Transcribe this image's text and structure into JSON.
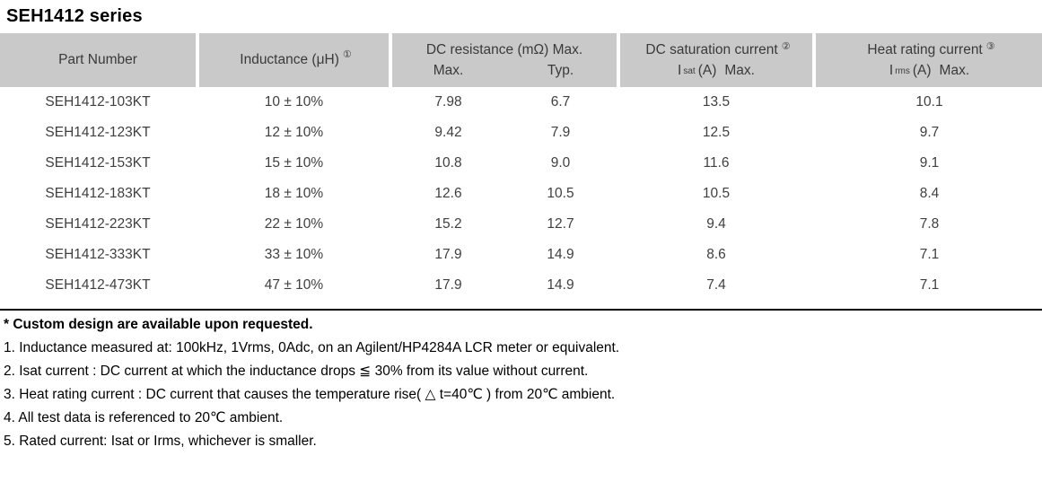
{
  "title": "SEH1412 series",
  "header": {
    "part_number": "Part Number",
    "inductance": {
      "label": "Inductance (μH)",
      "sup": "①"
    },
    "dc_resistance": {
      "label": "DC resistance (mΩ) Max.",
      "sub_max": "Max.",
      "sub_typ": "Typ."
    },
    "dc_saturation": {
      "label": "DC saturation current",
      "sup": "②",
      "i": "I",
      "sub": "sat",
      "unit": "(A)",
      "max": "Max."
    },
    "heat_rating": {
      "label": "Heat rating current",
      "sup": "③",
      "i": "I",
      "sub": "rms",
      "unit": "(A)",
      "max": "Max."
    }
  },
  "rows": [
    {
      "part": "SEH1412-103KT",
      "inductance": "10 ± 10%",
      "rmax": "7.98",
      "rtyp": "6.7",
      "isat": "13.5",
      "irms": "10.1"
    },
    {
      "part": "SEH1412-123KT",
      "inductance": "12 ± 10%",
      "rmax": "9.42",
      "rtyp": "7.9",
      "isat": "12.5",
      "irms": "9.7"
    },
    {
      "part": "SEH1412-153KT",
      "inductance": "15 ± 10%",
      "rmax": "10.8",
      "rtyp": "9.0",
      "isat": "11.6",
      "irms": "9.1"
    },
    {
      "part": "SEH1412-183KT",
      "inductance": "18 ± 10%",
      "rmax": "12.6",
      "rtyp": "10.5",
      "isat": "10.5",
      "irms": "8.4"
    },
    {
      "part": "SEH1412-223KT",
      "inductance": "22 ± 10%",
      "rmax": "15.2",
      "rtyp": "12.7",
      "isat": "9.4",
      "irms": "7.8"
    },
    {
      "part": "SEH1412-333KT",
      "inductance": "33 ± 10%",
      "rmax": "17.9",
      "rtyp": "14.9",
      "isat": "8.6",
      "irms": "7.1"
    },
    {
      "part": "SEH1412-473KT",
      "inductance": "47 ± 10%",
      "rmax": "17.9",
      "rtyp": "14.9",
      "isat": "7.4",
      "irms": "7.1"
    }
  ],
  "notes": {
    "custom": "* Custom design are available upon requested.",
    "items": [
      "1. Inductance measured at: 100kHz, 1Vrms, 0Adc, on an Agilent/HP4284A LCR meter or equivalent.",
      "2. Isat current : DC current at which the inductance drops ≦ 30% from its value without current.",
      "3. Heat rating current : DC current that causes the temperature rise( △ t=40℃ ) from 20℃ ambient.",
      "4. All test data is referenced to 20℃ ambient.",
      "5. Rated current: Isat or Irms, whichever is smaller."
    ]
  },
  "colors": {
    "header_bg": "#c9c9c9",
    "header_text": "#3a3a3a",
    "body_text": "#3f3f3f",
    "notes_text": "#000000",
    "divider": "#000000"
  }
}
